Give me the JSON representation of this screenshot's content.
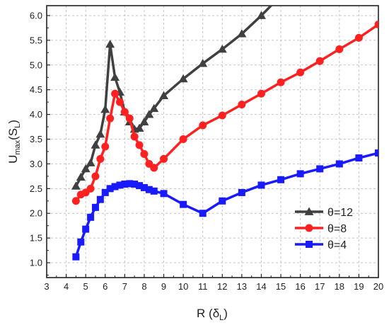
{
  "chart_data": {
    "type": "line",
    "xlabel": {
      "main": "R (δ",
      "sub": "L",
      "tail": ")"
    },
    "ylabel": {
      "main": "U",
      "sub1": "max",
      "mid": "(S",
      "sub2": "L",
      "tail": ")"
    },
    "xlim": [
      3,
      20
    ],
    "ylim": [
      0.7,
      6.2
    ],
    "x_ticks": [
      "3",
      "4",
      "5",
      "6",
      "7",
      "8",
      "9",
      "10",
      "11",
      "12",
      "13",
      "14",
      "15",
      "16",
      "17",
      "18",
      "19",
      "20"
    ],
    "y_ticks": [
      "1.0",
      "1.5",
      "2.0",
      "2.5",
      "3.0",
      "3.5",
      "4.0",
      "4.5",
      "5.0",
      "5.5",
      "6.0"
    ],
    "grid": true,
    "legend_position": "bottom-right",
    "series": [
      {
        "name": "θ=12",
        "color": "#404040",
        "marker": "triangle",
        "x": [
          4.5,
          4.75,
          5.0,
          5.25,
          5.5,
          5.75,
          6.0,
          6.25,
          6.5,
          6.75,
          7.0,
          7.25,
          7.5,
          7.75,
          8.0,
          8.25,
          8.5,
          9.0,
          10.0,
          11.0,
          12.0,
          13.0,
          14.0,
          15.0
        ],
        "y": [
          2.55,
          2.73,
          2.9,
          3.02,
          3.38,
          3.6,
          4.1,
          5.42,
          4.75,
          4.45,
          4.05,
          3.85,
          3.7,
          3.72,
          3.85,
          4.0,
          4.12,
          4.38,
          4.72,
          5.03,
          5.32,
          5.63,
          6.0,
          6.4
        ]
      },
      {
        "name": "θ=8",
        "color": "#ff2020",
        "marker": "circle",
        "x": [
          4.5,
          4.75,
          5.0,
          5.25,
          5.5,
          5.75,
          6.0,
          6.25,
          6.5,
          6.75,
          7.0,
          7.25,
          7.5,
          7.75,
          8.0,
          8.25,
          8.5,
          9.0,
          10.0,
          11.0,
          12.0,
          13.0,
          14.0,
          15.0,
          16.0,
          17.0,
          18.0,
          19.0,
          20.0
        ],
        "y": [
          2.25,
          2.38,
          2.42,
          2.5,
          2.75,
          3.1,
          3.35,
          3.92,
          4.42,
          4.25,
          4.05,
          3.92,
          3.55,
          3.38,
          3.2,
          3.0,
          2.92,
          3.1,
          3.5,
          3.78,
          3.98,
          4.2,
          4.42,
          4.65,
          4.85,
          5.08,
          5.32,
          5.55,
          5.82
        ]
      },
      {
        "name": "θ=4",
        "color": "#1a1aff",
        "marker": "square",
        "x": [
          4.5,
          4.75,
          5.0,
          5.25,
          5.5,
          5.75,
          6.0,
          6.25,
          6.5,
          6.75,
          7.0,
          7.25,
          7.5,
          7.75,
          8.0,
          8.25,
          8.5,
          9.0,
          10.0,
          11.0,
          12.0,
          13.0,
          14.0,
          15.0,
          16.0,
          17.0,
          18.0,
          19.0,
          20.0
        ],
        "y": [
          1.12,
          1.42,
          1.68,
          1.92,
          2.12,
          2.28,
          2.42,
          2.5,
          2.54,
          2.57,
          2.59,
          2.6,
          2.59,
          2.56,
          2.52,
          2.48,
          2.45,
          2.4,
          2.18,
          2.0,
          2.25,
          2.42,
          2.57,
          2.68,
          2.8,
          2.9,
          3.0,
          3.12,
          3.22
        ]
      }
    ]
  }
}
